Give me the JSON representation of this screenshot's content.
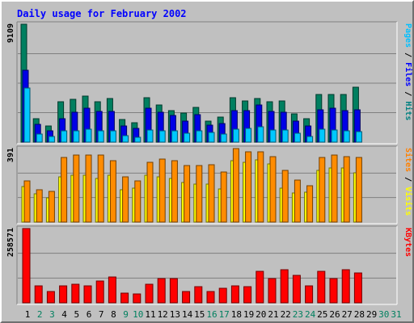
{
  "chart_data": {
    "type": "bar",
    "title": "Daily usage for February 2002",
    "categories": [
      "1",
      "2",
      "3",
      "4",
      "5",
      "6",
      "7",
      "8",
      "9",
      "10",
      "11",
      "12",
      "13",
      "14",
      "15",
      "16",
      "17",
      "18",
      "19",
      "20",
      "21",
      "22",
      "23",
      "24",
      "25",
      "26",
      "27",
      "28",
      "29",
      "30",
      "31"
    ],
    "weekend_days": [
      "2",
      "3",
      "9",
      "10",
      "16",
      "17",
      "23",
      "24",
      "30",
      "31"
    ],
    "data_days": 28,
    "panels": [
      {
        "name": "traffic",
        "max_label": "9109",
        "max": 9109,
        "right_label": [
          {
            "text": "Pages",
            "color": "#00c0ff"
          },
          {
            "text": " / ",
            "color": "#000000"
          },
          {
            "text": "Files",
            "color": "#0000ff"
          },
          {
            "text": " / ",
            "color": "#000000"
          },
          {
            "text": "Hits",
            "color": "#008080"
          }
        ],
        "series": [
          {
            "name": "Hits",
            "color": "#007f60",
            "values": [
              9109,
              1800,
              1250,
              3100,
              3300,
              3550,
              3100,
              3350,
              1750,
              1500,
              3450,
              2850,
              2450,
              2250,
              2700,
              1650,
              1950,
              3450,
              3200,
              3400,
              3150,
              3200,
              2200,
              1800,
              3700,
              3700,
              3700,
              4250
            ]
          },
          {
            "name": "Files",
            "color": "#0000e6",
            "values": [
              5550,
              1350,
              850,
              1800,
              2300,
              2600,
              2400,
              2350,
              1250,
              1050,
              2650,
              2300,
              2050,
              1650,
              2100,
              1300,
              1450,
              2450,
              2450,
              2900,
              2350,
              2300,
              1650,
              1250,
              2500,
              2600,
              2450,
              2500
            ]
          },
          {
            "name": "Pages",
            "color": "#00c8ff",
            "values": [
              4150,
              650,
              450,
              850,
              850,
              1000,
              850,
              850,
              500,
              350,
              950,
              900,
              850,
              700,
              850,
              750,
              600,
              1000,
              1050,
              1200,
              950,
              950,
              700,
              450,
              1000,
              950,
              850,
              800
            ]
          }
        ]
      },
      {
        "name": "sites",
        "max_label": "391",
        "max": 391,
        "right_label": [
          {
            "text": "Sites",
            "color": "#ff8000"
          },
          {
            "text": " / ",
            "color": "#000000"
          },
          {
            "text": "Visits",
            "color": "#ffff00"
          }
        ],
        "series": [
          {
            "name": "Visits",
            "color": "#ffff00",
            "values": [
              190,
              150,
              130,
              240,
              250,
              250,
              230,
              250,
              170,
              180,
              250,
              240,
              230,
              210,
              200,
              200,
              175,
              325,
              320,
              330,
              310,
              180,
              155,
              160,
              275,
              290,
              290,
              260
            ]
          },
          {
            "name": "Sites",
            "color": "#ff8c00",
            "values": [
              220,
              170,
              165,
              345,
              355,
              355,
              355,
              325,
              240,
              220,
              320,
              335,
              325,
              300,
              300,
              305,
              265,
              391,
              375,
              375,
              350,
              275,
              225,
              195,
              345,
              355,
              350,
              345
            ]
          }
        ]
      },
      {
        "name": "kbytes",
        "max_label": "258571",
        "max": 258571,
        "right_label": [
          {
            "text": "KBytes",
            "color": "#ff0000"
          }
        ],
        "series": [
          {
            "name": "KBytes",
            "color": "#ff0000",
            "values": [
              258571,
              60000,
              40000,
              60000,
              65000,
              60000,
              75000,
              90000,
              35000,
              30000,
              65000,
              85000,
              85000,
              40000,
              55000,
              40000,
              50000,
              60000,
              55000,
              110000,
              85000,
              115000,
              95000,
              60000,
              110000,
              85000,
              115000,
              105000
            ]
          }
        ]
      }
    ]
  }
}
